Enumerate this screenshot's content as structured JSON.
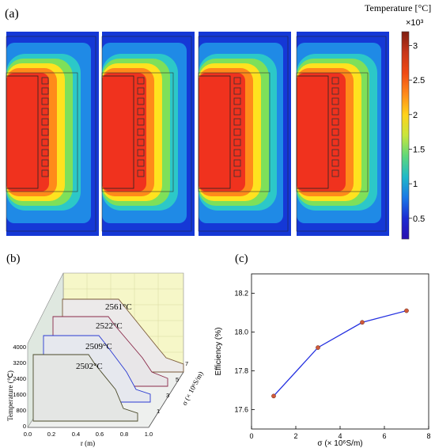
{
  "panel_a": {
    "label": "(a)",
    "colorbar_title": "Temperature [°C]",
    "colorbar_multiplier": "×10³",
    "colorbar_ticks": [
      "3",
      "2.5",
      "2",
      "1.5",
      "1",
      "0.5"
    ],
    "colorbar_tick_values": [
      3,
      2.5,
      2,
      1.5,
      1,
      0.5
    ],
    "colorbar_range": [
      0.2,
      3.2
    ],
    "colorbar_colors": [
      "#7f1f12",
      "#c8361a",
      "#f04a14",
      "#ff8a1a",
      "#ffd21a",
      "#c8e63c",
      "#5ed87a",
      "#1fb9c8",
      "#1a78e6",
      "#1c2bd2",
      "#2a0fb0"
    ],
    "map_colors": {
      "background": "#1538d6",
      "outer": "#1f8ae6",
      "teal": "#2cc8c8",
      "green": "#7ee05a",
      "yellow": "#ffe21f",
      "orange": "#ff8a1a",
      "red": "#f0321e"
    },
    "map_count": 4
  },
  "panel_b": {
    "label": "(b)",
    "annotations": [
      "2561°C",
      "2522°C",
      "2509°C",
      "2502°C"
    ],
    "ylabel": "Temperature (℃)",
    "yticks": [
      "4000",
      "3200",
      "2400",
      "1600",
      "800",
      "0"
    ],
    "xlabel": "r (m)",
    "xticks": [
      "0.0",
      "0.2",
      "0.4",
      "0.6",
      "0.8",
      "1.0"
    ],
    "zlabel": "σ (× 10⁶S/m)",
    "zticks": [
      "7",
      "5",
      "3",
      "1"
    ],
    "line_colors": [
      "#7a5a3a",
      "#8a2a4a",
      "#2a3ad2",
      "#4a4a2a"
    ]
  },
  "chart_data": [
    {
      "type": "line",
      "panel": "(c)",
      "title": "",
      "xlabel": "σ (× 10⁶S/m)",
      "ylabel": "Efficiency (%)",
      "x": [
        1,
        3,
        5,
        7
      ],
      "y": [
        17.67,
        17.92,
        18.05,
        18.11
      ],
      "xlim": [
        0,
        8
      ],
      "ylim": [
        17.5,
        18.3
      ],
      "xticks": [
        "0",
        "2",
        "4",
        "6",
        "8"
      ],
      "yticks": [
        "17.6",
        "17.8",
        "18.0",
        "18.2"
      ],
      "line_color": "#2430e0",
      "marker_color": "#d05a3a",
      "grid": false
    }
  ]
}
